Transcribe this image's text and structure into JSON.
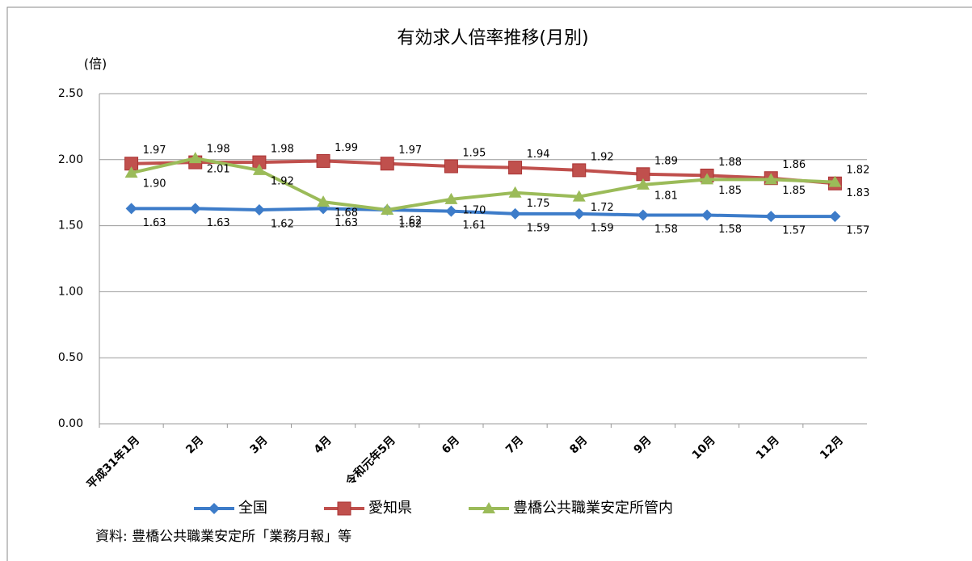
{
  "chart_data": {
    "type": "line",
    "title": "有効求人倍率推移(月別)",
    "y_label": "(倍)",
    "categories": [
      "平成31年1月",
      "2月",
      "3月",
      "4月",
      "令和元年5月",
      "6月",
      "7月",
      "8月",
      "9月",
      "10月",
      "11月",
      "12月"
    ],
    "series": [
      {
        "name": "全国",
        "color": "#3d7cc9",
        "marker": "diamond",
        "values": [
          1.63,
          1.63,
          1.62,
          1.63,
          1.62,
          1.61,
          1.59,
          1.59,
          1.58,
          1.58,
          1.57,
          1.57
        ],
        "value_labels": [
          "1.63",
          "1.63",
          "1.62",
          "1.63",
          "1.62",
          "1.61",
          "1.59",
          "1.59",
          "1.58",
          "1.58",
          "1.57",
          "1.57"
        ]
      },
      {
        "name": "愛知県",
        "color": "#c0504d",
        "marker": "square",
        "values": [
          1.97,
          1.98,
          1.98,
          1.99,
          1.97,
          1.95,
          1.94,
          1.92,
          1.89,
          1.88,
          1.86,
          1.82
        ],
        "value_labels": [
          "1.97",
          "1.98",
          "1.98",
          "1.99",
          "1.97",
          "1.95",
          "1.94",
          "1.92",
          "1.89",
          "1.88",
          "1.86",
          "1.82"
        ]
      },
      {
        "name": "豊橋公共職業安定所管内",
        "color": "#9bbb59",
        "marker": "triangle",
        "values": [
          1.9,
          2.01,
          1.92,
          1.68,
          1.62,
          1.7,
          1.75,
          1.72,
          1.81,
          1.85,
          1.85,
          1.83
        ],
        "value_labels": [
          "1.90",
          "2.01",
          "1.92",
          "1.68",
          "1.62",
          "1.70",
          "1.75",
          "1.72",
          "1.81",
          "1.85",
          "1.85",
          "1.83"
        ]
      }
    ],
    "ylim": [
      0,
      2.5
    ],
    "yticks": [
      {
        "value": 0,
        "label": "0.00"
      },
      {
        "value": 0.5,
        "label": "0.50"
      },
      {
        "value": 1,
        "label": "1.00"
      },
      {
        "value": 1.5,
        "label": "1.50"
      },
      {
        "value": 2,
        "label": "2.00"
      },
      {
        "value": 2.5,
        "label": "2.50"
      }
    ],
    "grid": true,
    "legend": "bottom",
    "source": "資料: 豊橋公共職業安定所「業務月報」等"
  }
}
